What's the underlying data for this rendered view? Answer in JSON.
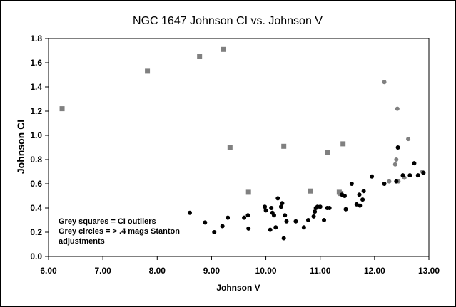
{
  "chart_data": {
    "type": "scatter",
    "title": "NGC 1647 Johnson CI vs. Johnson V",
    "xlabel": "Johnson V",
    "ylabel": "Johnson CI",
    "xlim": [
      6.0,
      13.0
    ],
    "ylim": [
      0.0,
      1.8
    ],
    "x_ticks": [
      "6.00",
      "7.00",
      "8.00",
      "9.00",
      "10.00",
      "11.00",
      "12.00",
      "13.00"
    ],
    "y_ticks": [
      "0.0",
      "0.2",
      "0.4",
      "0.6",
      "0.8",
      "1.0",
      "1.2",
      "1.4",
      "1.6",
      "1.8"
    ],
    "grid": false,
    "annotations": [
      "Grey squares = CI outliers",
      "Grey circles = > .4 mags Stanton",
      "adjustments"
    ],
    "series": [
      {
        "marker": "square",
        "color": "#808080",
        "x": [
          6.25,
          7.82,
          8.78,
          9.22,
          9.34,
          9.68,
          10.33,
          10.82,
          11.13,
          11.35,
          11.38,
          11.42
        ],
        "y": [
          1.22,
          1.53,
          1.65,
          1.71,
          0.9,
          0.53,
          0.91,
          0.54,
          0.86,
          0.53,
          0.52,
          0.93
        ]
      },
      {
        "marker": "circle",
        "color": "#808080",
        "x": [
          12.18,
          12.27,
          12.38,
          12.4,
          12.42,
          12.44,
          12.55,
          12.62,
          12.88
        ],
        "y": [
          1.44,
          0.62,
          0.76,
          0.8,
          1.22,
          0.62,
          0.65,
          0.97,
          0.7
        ]
      },
      {
        "marker": "circle",
        "color": "#000000",
        "x": [
          8.6,
          8.88,
          9.05,
          9.2,
          9.3,
          9.6,
          9.67,
          9.68,
          9.98,
          10.0,
          10.08,
          10.1,
          10.12,
          10.15,
          10.18,
          10.22,
          10.28,
          10.3,
          10.33,
          10.35,
          10.38,
          10.55,
          10.7,
          10.78,
          10.88,
          10.9,
          10.92,
          10.95,
          11.0,
          11.07,
          11.13,
          11.17,
          11.4,
          11.45,
          11.47,
          11.58,
          11.67,
          11.72,
          11.73,
          11.78,
          11.8,
          11.95,
          12.18,
          12.4,
          12.43,
          12.52,
          12.65,
          12.73,
          12.8,
          12.9
        ],
        "y": [
          0.36,
          0.28,
          0.2,
          0.25,
          0.32,
          0.32,
          0.34,
          0.23,
          0.41,
          0.38,
          0.22,
          0.4,
          0.36,
          0.34,
          0.24,
          0.48,
          0.41,
          0.44,
          0.15,
          0.34,
          0.29,
          0.29,
          0.24,
          0.3,
          0.33,
          0.37,
          0.4,
          0.41,
          0.41,
          0.3,
          0.4,
          0.4,
          0.51,
          0.5,
          0.39,
          0.6,
          0.43,
          0.51,
          0.42,
          0.47,
          0.54,
          0.66,
          0.6,
          0.62,
          0.9,
          0.67,
          0.67,
          0.77,
          0.67,
          0.69
        ]
      }
    ]
  }
}
